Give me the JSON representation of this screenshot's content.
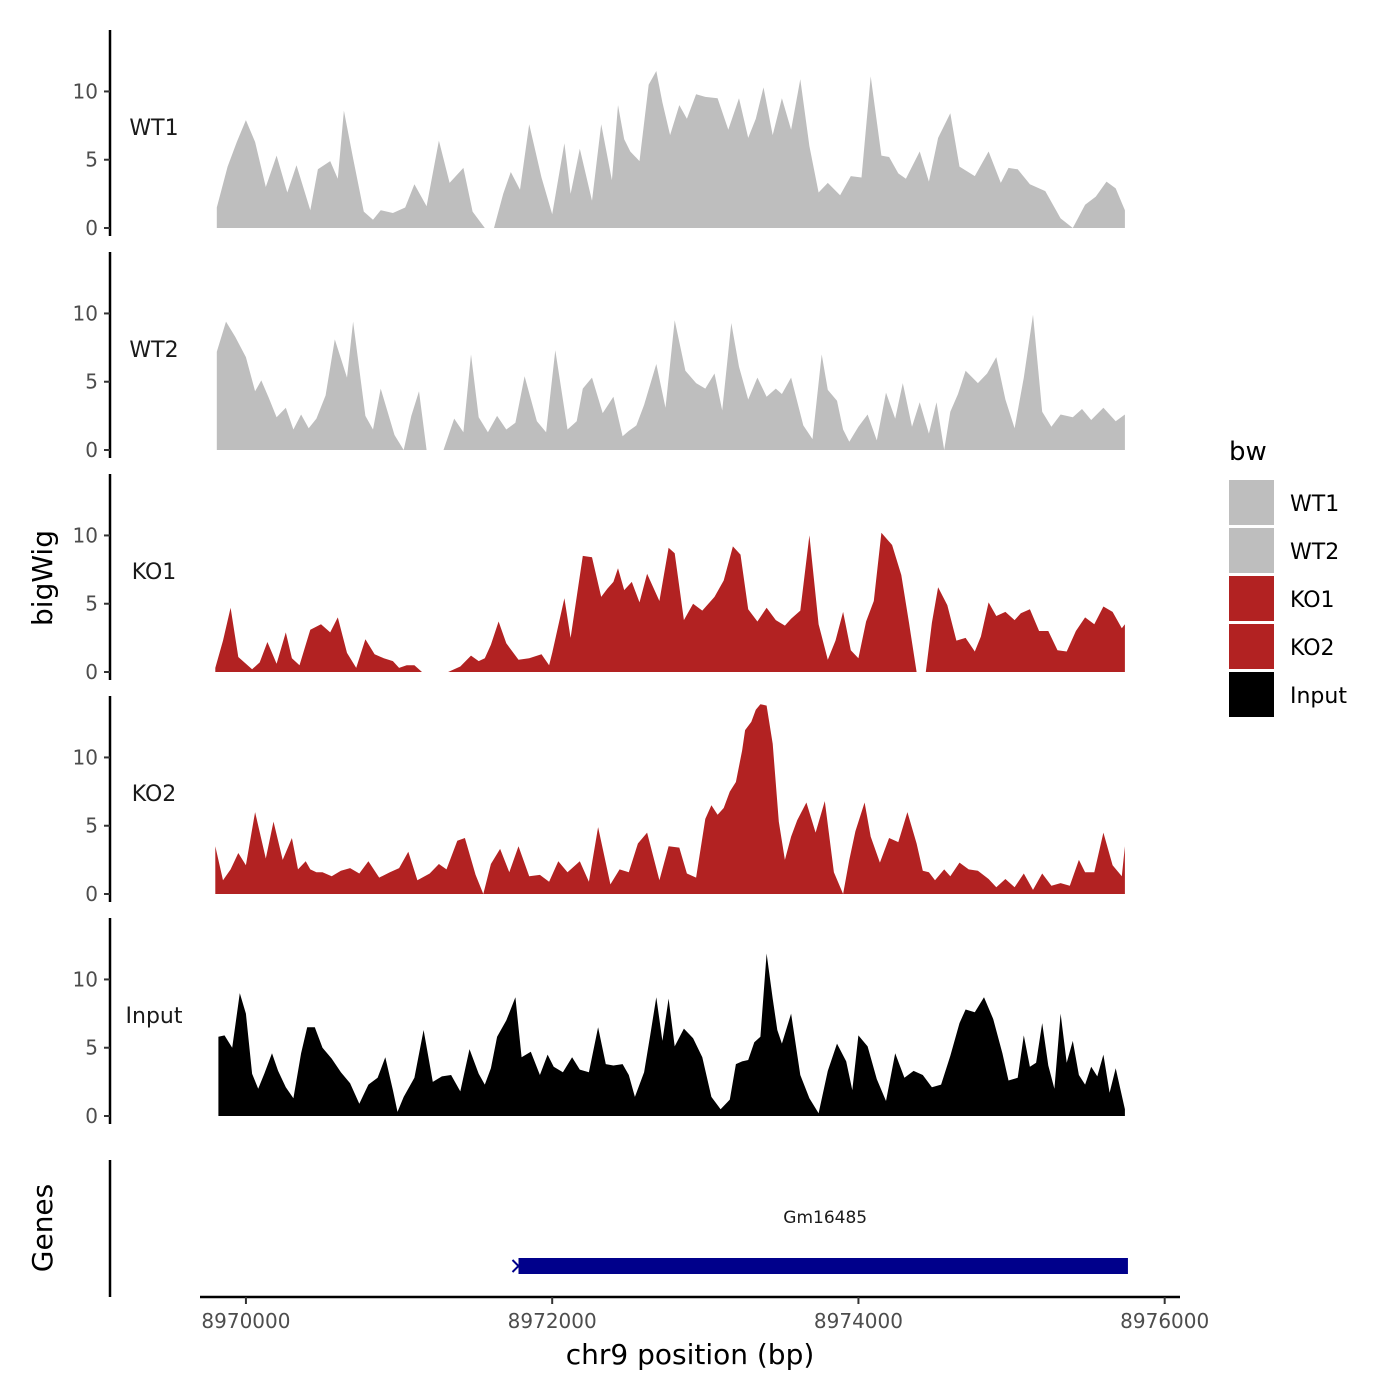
{
  "chart_data": {
    "type": "area",
    "title": "",
    "xlabel": "chr9 position (bp)",
    "ylabel": "bigWig",
    "genes_label": "Genes",
    "xlim": [
      8969700,
      8976100
    ],
    "ylim": [
      0,
      14.5
    ],
    "x_ticks": [
      8970000,
      8972000,
      8974000,
      8976000
    ],
    "x_tick_labels": [
      "8970000",
      "8972000",
      "8974000",
      "8976000"
    ],
    "y_ticks": [
      0,
      5,
      10
    ],
    "y_tick_labels": [
      "0",
      "5",
      "10"
    ],
    "legend": {
      "title": "bw",
      "position": "right",
      "entries": [
        {
          "name": "WT1",
          "color": "#BEBEBE"
        },
        {
          "name": "WT2",
          "color": "#BEBEBE"
        },
        {
          "name": "KO1",
          "color": "#B22222"
        },
        {
          "name": "KO2",
          "color": "#B22222"
        },
        {
          "name": "Input",
          "color": "#000000"
        }
      ]
    },
    "series": [
      {
        "name": "WT1",
        "color": "#BEBEBE",
        "x": [
          8969810,
          8969880,
          8969940,
          8970000,
          8970060,
          8970130,
          8970200,
          8970270,
          8970330,
          8970420,
          8970470,
          8970550,
          8970600,
          8970640,
          8970700,
          8970770,
          8970830,
          8970880,
          8970960,
          8971040,
          8971100,
          8971180,
          8971260,
          8971330,
          8971420,
          8971480,
          8971560,
          8971620,
          8971680,
          8971730,
          8971790,
          8971850,
          8971930,
          8972000,
          8972080,
          8972120,
          8972180,
          8972260,
          8972320,
          8972390,
          8972430,
          8972470,
          8972510,
          8972570,
          8972630,
          8972680,
          8972720,
          8972770,
          8972830,
          8972880,
          8972940,
          8973000,
          8973080,
          8973150,
          8973220,
          8973280,
          8973330,
          8973380,
          8973440,
          8973500,
          8973560,
          8973620,
          8973680,
          8973740,
          8973800,
          8973880,
          8973950,
          8974020,
          8974080,
          8974150,
          8974200,
          8974260,
          8974310,
          8974400,
          8974460,
          8974520,
          8974600,
          8974660,
          8974760,
          8974850,
          8974930,
          8974980,
          8975040,
          8975120,
          8975220,
          8975320,
          8975400,
          8975480,
          8975550,
          8975620,
          8975680,
          8975740
        ],
        "values": [
          1.5,
          4.5,
          6.3,
          7.9,
          6.3,
          3.0,
          5.3,
          2.6,
          4.6,
          1.3,
          4.3,
          4.9,
          3.6,
          8.6,
          5.1,
          1.2,
          0.6,
          1.3,
          1.1,
          1.5,
          3.2,
          1.6,
          6.4,
          3.3,
          4.4,
          1.2,
          0,
          0,
          2.5,
          4.1,
          2.8,
          7.6,
          3.7,
          1.0,
          6.2,
          2.5,
          5.8,
          2.0,
          7.6,
          3.5,
          9.0,
          6.5,
          5.6,
          4.9,
          10.5,
          11.5,
          9.2,
          6.8,
          9.0,
          8.0,
          9.8,
          9.6,
          9.5,
          7.2,
          9.5,
          6.6,
          8.0,
          10.3,
          6.8,
          9.5,
          7.2,
          10.9,
          6.0,
          2.6,
          3.3,
          2.4,
          3.8,
          3.7,
          11.1,
          5.3,
          5.2,
          4.0,
          3.6,
          5.6,
          3.4,
          6.6,
          8.4,
          4.5,
          3.8,
          5.6,
          3.3,
          4.4,
          4.3,
          3.2,
          2.7,
          0.7,
          0,
          1.7,
          2.3,
          3.4,
          2.9,
          1.3
        ]
      },
      {
        "name": "WT2",
        "color": "#BEBEBE",
        "x": [
          8969810,
          8969870,
          8969930,
          8970000,
          8970060,
          8970100,
          8970150,
          8970200,
          8970260,
          8970310,
          8970360,
          8970410,
          8970460,
          8970520,
          8970580,
          8970660,
          8970700,
          8970780,
          8970830,
          8970880,
          8970970,
          8971030,
          8971080,
          8971130,
          8971180,
          8971230,
          8971290,
          8971360,
          8971420,
          8971470,
          8971520,
          8971580,
          8971640,
          8971700,
          8971760,
          8971820,
          8971900,
          8971960,
          8972020,
          8972100,
          8972160,
          8972200,
          8972260,
          8972330,
          8972400,
          8972460,
          8972500,
          8972550,
          8972600,
          8972680,
          8972740,
          8972800,
          8972870,
          8972940,
          8973000,
          8973060,
          8973110,
          8973170,
          8973220,
          8973280,
          8973340,
          8973400,
          8973460,
          8973500,
          8973560,
          8973640,
          8973700,
          8973760,
          8973800,
          8973860,
          8973900,
          8973940,
          8974000,
          8974060,
          8974120,
          8974180,
          8974240,
          8974290,
          8974350,
          8974400,
          8974460,
          8974510,
          8974560,
          8974600,
          8974650,
          8974700,
          8974780,
          8974840,
          8974900,
          8974960,
          8975020,
          8975080,
          8975140,
          8975200,
          8975260,
          8975320,
          8975400,
          8975460,
          8975520,
          8975600,
          8975680,
          8975740
        ],
        "values": [
          7.2,
          9.4,
          8.3,
          6.8,
          4.3,
          5.1,
          3.8,
          2.4,
          3.1,
          1.5,
          2.6,
          1.6,
          2.3,
          4.0,
          8.1,
          5.3,
          9.4,
          2.5,
          1.5,
          4.5,
          1.1,
          0,
          2.5,
          4.3,
          0,
          0,
          0,
          2.3,
          1.3,
          7.0,
          2.4,
          1.3,
          2.5,
          1.5,
          2.0,
          5.4,
          2.1,
          1.3,
          7.3,
          1.5,
          2.1,
          4.5,
          5.3,
          2.7,
          3.9,
          1.0,
          1.4,
          1.8,
          3.3,
          6.3,
          3.1,
          9.5,
          5.8,
          4.9,
          4.5,
          5.6,
          2.9,
          9.3,
          6.1,
          3.7,
          5.3,
          3.9,
          4.5,
          4.1,
          5.3,
          1.8,
          0.8,
          7.0,
          4.4,
          3.6,
          1.5,
          0.6,
          1.7,
          2.6,
          0.7,
          4.2,
          2.3,
          4.9,
          1.7,
          3.5,
          1.2,
          3.5,
          0,
          2.8,
          4.1,
          5.8,
          4.9,
          5.6,
          6.8,
          3.7,
          1.6,
          5.3,
          9.9,
          2.8,
          1.7,
          2.6,
          2.4,
          3.0,
          2.2,
          3.1,
          2.1,
          2.6
        ]
      },
      {
        "name": "KO1",
        "color": "#B22222",
        "x": [
          8969800,
          8969850,
          8969900,
          8969950,
          8970000,
          8970040,
          8970090,
          8970140,
          8970200,
          8970260,
          8970300,
          8970350,
          8970420,
          8970490,
          8970550,
          8970600,
          8970660,
          8970720,
          8970780,
          8970840,
          8970900,
          8970960,
          8971000,
          8971050,
          8971100,
          8971150,
          8971200,
          8971260,
          8971320,
          8971400,
          8971470,
          8971520,
          8971560,
          8971600,
          8971650,
          8971700,
          8971780,
          8971850,
          8971930,
          8971980,
          8972000,
          8972080,
          8972120,
          8972200,
          8972260,
          8972320,
          8972360,
          8972400,
          8972430,
          8972470,
          8972520,
          8972570,
          8972620,
          8972700,
          8972760,
          8972800,
          8972860,
          8972920,
          8972980,
          8973060,
          8973120,
          8973180,
          8973230,
          8973280,
          8973340,
          8973400,
          8973460,
          8973520,
          8973560,
          8973620,
          8973680,
          8973740,
          8973800,
          8973850,
          8973900,
          8973950,
          8974000,
          8974050,
          8974100,
          8974150,
          8974220,
          8974280,
          8974330,
          8974380,
          8974440,
          8974480,
          8974520,
          8974580,
          8974640,
          8974700,
          8974760,
          8974800,
          8974850,
          8974900,
          8974960,
          8975020,
          8975060,
          8975120,
          8975180,
          8975240,
          8975300,
          8975360,
          8975420,
          8975480,
          8975540,
          8975600,
          8975660,
          8975720,
          8975740
        ],
        "values": [
          0.3,
          2.3,
          4.7,
          1.1,
          0.6,
          0.2,
          0.7,
          2.2,
          0.6,
          2.9,
          1.0,
          0.5,
          3.1,
          3.5,
          2.9,
          4.0,
          1.4,
          0.3,
          2.4,
          1.3,
          1.0,
          0.8,
          0.3,
          0.5,
          0.5,
          0,
          0,
          0,
          0,
          0.4,
          1.2,
          0.8,
          1.0,
          2.0,
          3.7,
          2.1,
          0.9,
          1.0,
          1.3,
          0.5,
          1.4,
          5.4,
          2.5,
          8.5,
          8.4,
          5.5,
          6.1,
          6.6,
          7.6,
          6.0,
          6.6,
          5.1,
          7.2,
          5.2,
          9.1,
          8.7,
          3.8,
          5.0,
          4.5,
          5.5,
          6.7,
          9.2,
          8.6,
          4.6,
          3.7,
          4.7,
          3.8,
          3.4,
          3.9,
          4.5,
          10.0,
          3.5,
          0.9,
          2.3,
          4.4,
          1.6,
          1.0,
          3.7,
          5.2,
          10.2,
          9.3,
          7.1,
          3.6,
          0,
          0,
          3.6,
          6.2,
          4.9,
          2.3,
          2.5,
          1.5,
          2.6,
          5.1,
          4.1,
          4.4,
          3.8,
          4.3,
          4.6,
          3.0,
          3.0,
          1.6,
          1.5,
          3.0,
          4.0,
          3.5,
          4.8,
          4.4,
          3.2,
          3.5
        ]
      },
      {
        "name": "KO2",
        "color": "#B22222",
        "x": [
          8969800,
          8969850,
          8969900,
          8969950,
          8970000,
          8970060,
          8970130,
          8970180,
          8970240,
          8970300,
          8970340,
          8970390,
          8970420,
          8970460,
          8970500,
          8970560,
          8970620,
          8970680,
          8970740,
          8970800,
          8970870,
          8970940,
          8971000,
          8971060,
          8971120,
          8971200,
          8971260,
          8971310,
          8971380,
          8971430,
          8971500,
          8971550,
          8971600,
          8971660,
          8971720,
          8971780,
          8971850,
          8971920,
          8971980,
          8972040,
          8972100,
          8972180,
          8972240,
          8972300,
          8972380,
          8972440,
          8972500,
          8972560,
          8972620,
          8972700,
          8972760,
          8972830,
          8972880,
          8972940,
          8973000,
          8973040,
          8973080,
          8973120,
          8973160,
          8973200,
          8973240,
          8973260,
          8973300,
          8973330,
          8973360,
          8973400,
          8973440,
          8973480,
          8973520,
          8973560,
          8973600,
          8973660,
          8973720,
          8973780,
          8973840,
          8973900,
          8973940,
          8973980,
          8974040,
          8974080,
          8974140,
          8974200,
          8974260,
          8974320,
          8974380,
          8974420,
          8974460,
          8974500,
          8974560,
          8974600,
          8974660,
          8974720,
          8974780,
          8974850,
          8974900,
          8974960,
          8975020,
          8975080,
          8975140,
          8975200,
          8975260,
          8975320,
          8975380,
          8975440,
          8975480,
          8975540,
          8975600,
          8975660,
          8975720,
          8975740
        ],
        "values": [
          3.5,
          1.0,
          1.8,
          3.0,
          2.1,
          6.0,
          2.6,
          5.3,
          2.5,
          4.1,
          1.8,
          2.4,
          1.8,
          1.6,
          1.6,
          1.3,
          1.7,
          1.9,
          1.5,
          2.4,
          1.2,
          1.6,
          1.9,
          3.1,
          1.0,
          1.5,
          2.2,
          1.8,
          3.9,
          4.1,
          1.4,
          0,
          2.2,
          3.3,
          1.6,
          3.5,
          1.3,
          1.4,
          0.9,
          2.4,
          1.6,
          2.4,
          0.9,
          4.9,
          0.7,
          1.8,
          1.6,
          3.7,
          4.5,
          1.0,
          3.5,
          3.4,
          1.5,
          1.2,
          5.5,
          6.5,
          5.8,
          6.3,
          7.5,
          8.2,
          10.5,
          12.0,
          12.6,
          13.5,
          13.9,
          13.8,
          11.0,
          5.3,
          2.5,
          4.2,
          5.4,
          6.7,
          4.5,
          6.8,
          1.6,
          0,
          2.5,
          4.6,
          6.7,
          4.2,
          2.3,
          4.1,
          3.8,
          6.0,
          3.7,
          1.7,
          1.6,
          1.0,
          1.8,
          1.3,
          2.3,
          1.8,
          1.7,
          1.1,
          0.5,
          1.1,
          0.5,
          1.5,
          0.3,
          1.5,
          0.6,
          0.8,
          0.6,
          2.5,
          1.6,
          1.6,
          4.5,
          2.1,
          1.3,
          3.5
        ]
      },
      {
        "name": "Input",
        "color": "#000000",
        "x": [
          8969820,
          8969860,
          8969910,
          8969960,
          8970000,
          8970040,
          8970080,
          8970120,
          8970170,
          8970210,
          8970260,
          8970310,
          8970360,
          8970400,
          8970450,
          8970500,
          8970560,
          8970620,
          8970680,
          8970740,
          8970800,
          8970860,
          8970910,
          8970960,
          8970990,
          8971030,
          8971100,
          8971160,
          8971220,
          8971280,
          8971340,
          8971400,
          8971460,
          8971520,
          8971560,
          8971600,
          8971640,
          8971700,
          8971760,
          8971800,
          8971860,
          8971920,
          8971970,
          8972010,
          8972070,
          8972130,
          8972180,
          8972240,
          8972300,
          8972350,
          8972400,
          8972460,
          8972500,
          8972540,
          8972600,
          8972640,
          8972680,
          8972720,
          8972760,
          8972800,
          8972860,
          8972920,
          8972980,
          8973040,
          8973100,
          8973160,
          8973200,
          8973240,
          8973280,
          8973320,
          8973360,
          8973400,
          8973440,
          8973470,
          8973500,
          8973560,
          8973620,
          8973680,
          8973740,
          8973800,
          8973860,
          8973920,
          8973960,
          8974000,
          8974060,
          8974120,
          8974180,
          8974240,
          8974300,
          8974360,
          8974420,
          8974480,
          8974540,
          8974600,
          8974660,
          8974700,
          8974760,
          8974820,
          8974880,
          8974940,
          8974980,
          8975040,
          8975080,
          8975120,
          8975160,
          8975200,
          8975240,
          8975280,
          8975320,
          8975360,
          8975400,
          8975440,
          8975480,
          8975520,
          8975560,
          8975600,
          8975640,
          8975680,
          8975740
        ],
        "values": [
          5.8,
          5.9,
          5.0,
          9.0,
          7.5,
          3.1,
          2.0,
          3.1,
          4.6,
          3.3,
          2.1,
          1.3,
          4.6,
          6.5,
          6.5,
          5.0,
          4.2,
          3.2,
          2.4,
          0.9,
          2.3,
          2.8,
          4.3,
          1.9,
          0.3,
          1.4,
          2.8,
          6.3,
          2.5,
          2.9,
          3.0,
          1.8,
          4.9,
          3.1,
          2.3,
          3.5,
          5.8,
          7.0,
          8.7,
          4.3,
          4.7,
          3.0,
          4.5,
          3.6,
          3.2,
          4.3,
          3.4,
          3.2,
          6.5,
          3.8,
          3.7,
          3.8,
          3.0,
          1.4,
          3.2,
          5.9,
          8.7,
          5.5,
          8.6,
          5.1,
          6.4,
          5.7,
          4.3,
          1.4,
          0.5,
          1.2,
          3.8,
          4.0,
          4.1,
          5.4,
          5.8,
          11.9,
          8.6,
          6.3,
          5.3,
          7.5,
          3.0,
          1.3,
          0.2,
          3.3,
          5.3,
          4.0,
          1.9,
          5.9,
          5.1,
          2.7,
          1.1,
          4.6,
          2.8,
          3.3,
          3.0,
          2.1,
          2.3,
          4.4,
          6.8,
          7.8,
          7.6,
          8.7,
          7.1,
          4.6,
          2.6,
          2.8,
          5.9,
          3.6,
          3.9,
          6.8,
          3.7,
          2.0,
          7.5,
          3.9,
          5.5,
          3.0,
          2.3,
          3.6,
          2.9,
          4.5,
          1.7,
          3.5,
          0.5
        ]
      }
    ],
    "genes": [
      {
        "name": "Gm16485",
        "start": 8971780,
        "end": 8975760,
        "strand": "-",
        "color": "#00008B"
      }
    ]
  }
}
